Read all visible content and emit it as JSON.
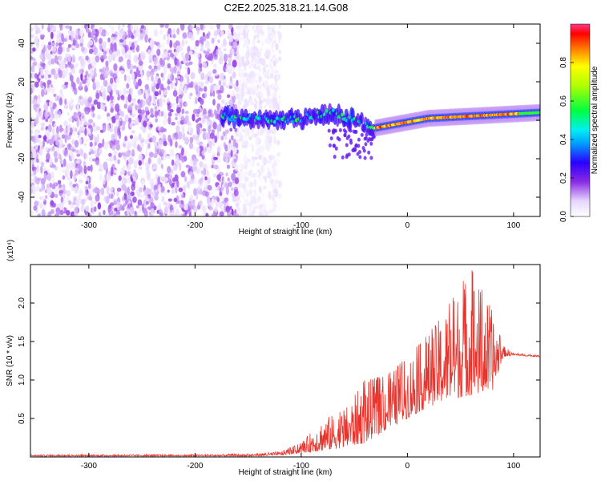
{
  "title": "C2E2.2025.318.21.14.G08",
  "chart_data": [
    {
      "type": "heatmap",
      "xlabel": "Height of straight line (km)",
      "ylabel": "Frequency (Hz)",
      "xlim": [
        -355,
        125
      ],
      "ylim": [
        -50,
        50
      ],
      "x_ticks": [
        -300,
        -200,
        -100,
        0,
        100
      ],
      "y_ticks": [
        -40,
        -20,
        0,
        20,
        40
      ],
      "grid": false,
      "colorbar": {
        "label": "Normalized spectral amplitude",
        "range": [
          0,
          1
        ],
        "ticks": [
          0.0,
          0.2,
          0.4,
          0.6,
          0.8
        ],
        "colormap": "rainbow (white-violet-blue-cyan-green-yellow-red-magenta)"
      },
      "regions": [
        {
          "name": "noise",
          "x_range": [
            -355,
            -140
          ],
          "y_range": [
            -50,
            50
          ],
          "amplitude": 0.1
        },
        {
          "name": "signal-onset",
          "x_range": [
            -175,
            -30
          ],
          "frequency_hz": [
            2,
            0,
            4,
            -4
          ],
          "amplitude": 0.45
        },
        {
          "name": "signal-stable",
          "x_range": [
            -30,
            125
          ],
          "frequency_hz": [
            1,
            4
          ],
          "amplitude": 0.9
        }
      ]
    },
    {
      "type": "line",
      "xlabel": "Height of straight line (km)",
      "ylabel": "SNR (10 * v/v)",
      "y_multiplier": "(x10⁴)",
      "xlim": [
        -355,
        125
      ],
      "ylim": [
        0,
        2.5
      ],
      "x_ticks": [
        -300,
        -200,
        -100,
        0,
        100
      ],
      "y_ticks": [
        0.5,
        1.0,
        1.5,
        2.0
      ],
      "grid": false,
      "series": [
        {
          "color": "#e8342c",
          "envelope_x": [
            -355,
            -200,
            -150,
            -120,
            -100,
            -80,
            -60,
            -40,
            -20,
            0,
            20,
            40,
            60,
            80,
            90,
            100,
            125
          ],
          "envelope_lower": [
            0.01,
            0.01,
            0.01,
            0.02,
            0.05,
            0.08,
            0.12,
            0.18,
            0.35,
            0.5,
            0.65,
            0.75,
            0.8,
            0.85,
            1.3,
            1.32,
            1.3
          ],
          "envelope_upper": [
            0.03,
            0.03,
            0.04,
            0.07,
            0.18,
            0.5,
            0.6,
            1.0,
            1.05,
            1.3,
            1.6,
            2.0,
            2.45,
            1.9,
            1.45,
            1.35,
            1.32
          ]
        }
      ]
    }
  ]
}
